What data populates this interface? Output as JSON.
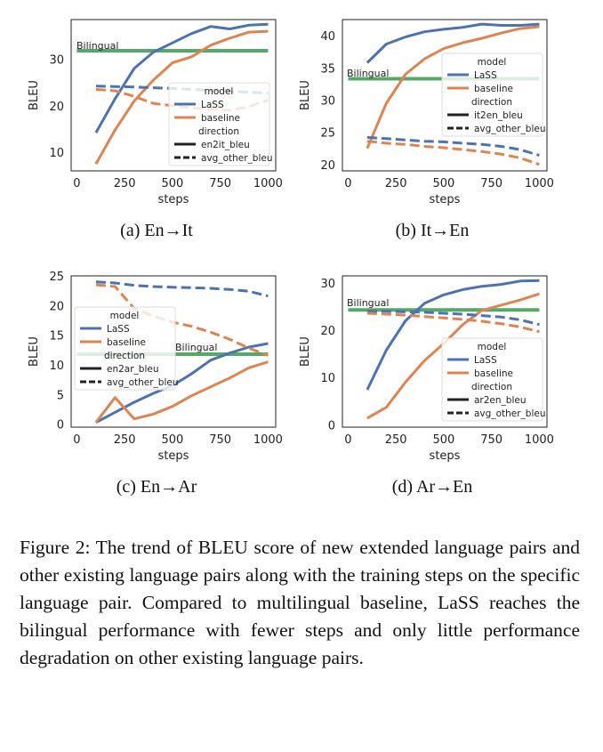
{
  "colors": {
    "lass": "#4c72b0",
    "baseline": "#dd8452",
    "bilingual": "#55a868"
  },
  "chart_data": [
    {
      "id": "a",
      "type": "line",
      "caption": "(a) En→It",
      "xlabel": "steps",
      "ylabel": "BLEU",
      "xlim": [
        -30,
        1040
      ],
      "ylim": [
        6,
        38.5
      ],
      "xticks": [
        0,
        250,
        500,
        750,
        1000
      ],
      "yticks": [
        10,
        20,
        30
      ],
      "bilingual": {
        "label": "Bilingual",
        "value": 31.8
      },
      "legend": {
        "model_title": "model",
        "model_entries": [
          "LaSS",
          "baseline"
        ],
        "direction_title": "direction",
        "direction_entries": [
          "en2it_bleu",
          "avg_other_bleu"
        ]
      },
      "series": [
        {
          "model": "LaSS",
          "style": "solid",
          "x": [
            100,
            200,
            300,
            400,
            500,
            600,
            700,
            800,
            900,
            1000
          ],
          "y": [
            14.2,
            21.5,
            28.0,
            31.5,
            33.5,
            35.5,
            37.0,
            36.5,
            37.3,
            37.5
          ]
        },
        {
          "model": "baseline",
          "style": "solid",
          "x": [
            100,
            200,
            300,
            400,
            500,
            600,
            700,
            800,
            900,
            1000
          ],
          "y": [
            7.5,
            14.8,
            21.0,
            25.5,
            29.2,
            30.5,
            33.0,
            34.5,
            35.8,
            36.0
          ]
        },
        {
          "model": "LaSS",
          "style": "dashed",
          "x": [
            100,
            300,
            500,
            700,
            1000
          ],
          "y": [
            24.2,
            24.0,
            23.7,
            23.3,
            22.7
          ]
        },
        {
          "model": "baseline",
          "style": "dashed",
          "x": [
            100,
            200,
            300,
            400,
            500,
            600,
            700,
            800,
            900,
            1000
          ],
          "y": [
            23.5,
            23.2,
            22.0,
            20.5,
            20.0,
            19.5,
            19.3,
            19.0,
            19.8,
            21.2
          ]
        }
      ]
    },
    {
      "id": "b",
      "type": "line",
      "caption": "(b) It→En",
      "xlabel": "steps",
      "ylabel": "BLEU",
      "xlim": [
        -30,
        1040
      ],
      "ylim": [
        19,
        42.5
      ],
      "xticks": [
        0,
        250,
        500,
        750,
        1000
      ],
      "yticks": [
        20,
        25,
        30,
        35,
        40
      ],
      "bilingual": {
        "label": "Bilingual",
        "value": 33.3
      },
      "legend": {
        "model_title": "model",
        "model_entries": [
          "LaSS",
          "baseline"
        ],
        "direction_title": "direction",
        "direction_entries": [
          "it2en_bleu",
          "avg_other_bleu"
        ]
      },
      "series": [
        {
          "model": "LaSS",
          "style": "solid",
          "x": [
            100,
            200,
            300,
            400,
            500,
            600,
            700,
            800,
            900,
            1000
          ],
          "y": [
            35.8,
            38.7,
            39.8,
            40.6,
            41.0,
            41.3,
            41.8,
            41.6,
            41.6,
            41.8
          ]
        },
        {
          "model": "baseline",
          "style": "solid",
          "x": [
            100,
            200,
            300,
            400,
            500,
            600,
            700,
            800,
            900,
            1000
          ],
          "y": [
            22.5,
            29.5,
            34.0,
            36.4,
            38.0,
            38.9,
            39.6,
            40.4,
            41.1,
            41.4
          ]
        },
        {
          "model": "LaSS",
          "style": "dashed",
          "x": [
            100,
            200,
            300,
            400,
            500,
            600,
            700,
            800,
            900,
            1000
          ],
          "y": [
            24.2,
            24.0,
            23.8,
            23.6,
            23.5,
            23.3,
            23.1,
            22.8,
            22.3,
            21.4
          ]
        },
        {
          "model": "baseline",
          "style": "dashed",
          "x": [
            100,
            200,
            300,
            400,
            500,
            600,
            700,
            800,
            900,
            1000
          ],
          "y": [
            23.6,
            23.3,
            23.1,
            22.8,
            22.6,
            22.3,
            22.0,
            21.6,
            21.0,
            20.0
          ]
        }
      ]
    },
    {
      "id": "c",
      "type": "line",
      "caption": "(c) En→Ar",
      "xlabel": "steps",
      "ylabel": "BLEU",
      "xlim": [
        -30,
        1040
      ],
      "ylim": [
        -0.5,
        25
      ],
      "xticks": [
        0,
        250,
        500,
        750,
        1000
      ],
      "yticks": [
        0,
        5,
        10,
        15,
        20,
        25
      ],
      "bilingual": {
        "label": "Bilingual",
        "value": 11.8
      },
      "legend": {
        "model_title": "model",
        "model_entries": [
          "LaSS",
          "baseline"
        ],
        "direction_title": "direction",
        "direction_entries": [
          "en2ar_bleu",
          "avg_other_bleu"
        ]
      },
      "series": [
        {
          "model": "LaSS",
          "style": "solid",
          "x": [
            100,
            200,
            300,
            400,
            500,
            600,
            700,
            800,
            900,
            1000
          ],
          "y": [
            0.3,
            2.0,
            3.7,
            5.2,
            6.5,
            8.5,
            10.8,
            12.0,
            13.0,
            13.6
          ]
        },
        {
          "model": "baseline",
          "style": "solid",
          "x": [
            100,
            200,
            300,
            400,
            500,
            600,
            700,
            800,
            900,
            1000
          ],
          "y": [
            0.3,
            4.5,
            0.9,
            1.7,
            3.0,
            4.8,
            6.3,
            7.8,
            9.5,
            10.5
          ]
        },
        {
          "model": "LaSS",
          "style": "dashed",
          "x": [
            100,
            200,
            300,
            400,
            500,
            600,
            700,
            800,
            900,
            1000
          ],
          "y": [
            24.0,
            23.8,
            23.4,
            23.2,
            23.1,
            23.0,
            22.9,
            22.7,
            22.4,
            21.6
          ]
        },
        {
          "model": "baseline",
          "style": "dashed",
          "x": [
            100,
            200,
            300,
            400,
            500,
            600,
            700,
            800,
            900,
            1000
          ],
          "y": [
            23.5,
            23.2,
            19.5,
            18.2,
            17.2,
            16.5,
            15.5,
            14.3,
            12.8,
            11.6
          ]
        }
      ]
    },
    {
      "id": "d",
      "type": "line",
      "caption": "(d) Ar→En",
      "xlabel": "steps",
      "ylabel": "BLEU",
      "xlim": [
        -30,
        1040
      ],
      "ylim": [
        -0.5,
        31.5
      ],
      "xticks": [
        0,
        250,
        500,
        750,
        1000
      ],
      "yticks": [
        0,
        10,
        20,
        30
      ],
      "bilingual": {
        "label": "Bilingual",
        "value": 24.3
      },
      "legend": {
        "model_title": "model",
        "model_entries": [
          "LaSS",
          "baseline"
        ],
        "direction_title": "direction",
        "direction_entries": [
          "ar2en_bleu",
          "avg_other_bleu"
        ]
      },
      "series": [
        {
          "model": "LaSS",
          "style": "solid",
          "x": [
            100,
            200,
            300,
            400,
            500,
            600,
            700,
            800,
            900,
            1000
          ],
          "y": [
            7.4,
            15.8,
            22.0,
            25.7,
            27.5,
            28.6,
            29.3,
            29.7,
            30.4,
            30.5
          ]
        },
        {
          "model": "baseline",
          "style": "solid",
          "x": [
            100,
            200,
            300,
            400,
            500,
            600,
            700,
            800,
            900,
            1000
          ],
          "y": [
            1.4,
            3.7,
            9.0,
            13.6,
            17.2,
            21.2,
            24.2,
            25.3,
            26.4,
            27.7
          ]
        },
        {
          "model": "LaSS",
          "style": "dashed",
          "x": [
            100,
            200,
            300,
            400,
            500,
            600,
            700,
            800,
            900,
            1000
          ],
          "y": [
            24.0,
            24.0,
            23.9,
            23.8,
            23.6,
            23.4,
            23.1,
            22.8,
            22.2,
            21.2
          ]
        },
        {
          "model": "baseline",
          "style": "dashed",
          "x": [
            100,
            200,
            300,
            400,
            500,
            600,
            700,
            800,
            900,
            1000
          ],
          "y": [
            23.6,
            23.4,
            23.2,
            22.9,
            22.6,
            22.3,
            21.9,
            21.4,
            20.7,
            19.7
          ]
        }
      ]
    }
  ],
  "caption": "Figure 2: The trend of BLEU score of new extended language pairs and other existing language pairs along with the training steps on the specific language pair. Compared to multilingual baseline, LaSS reaches the bilingual performance with fewer steps and only little performance degradation on other existing language pairs."
}
